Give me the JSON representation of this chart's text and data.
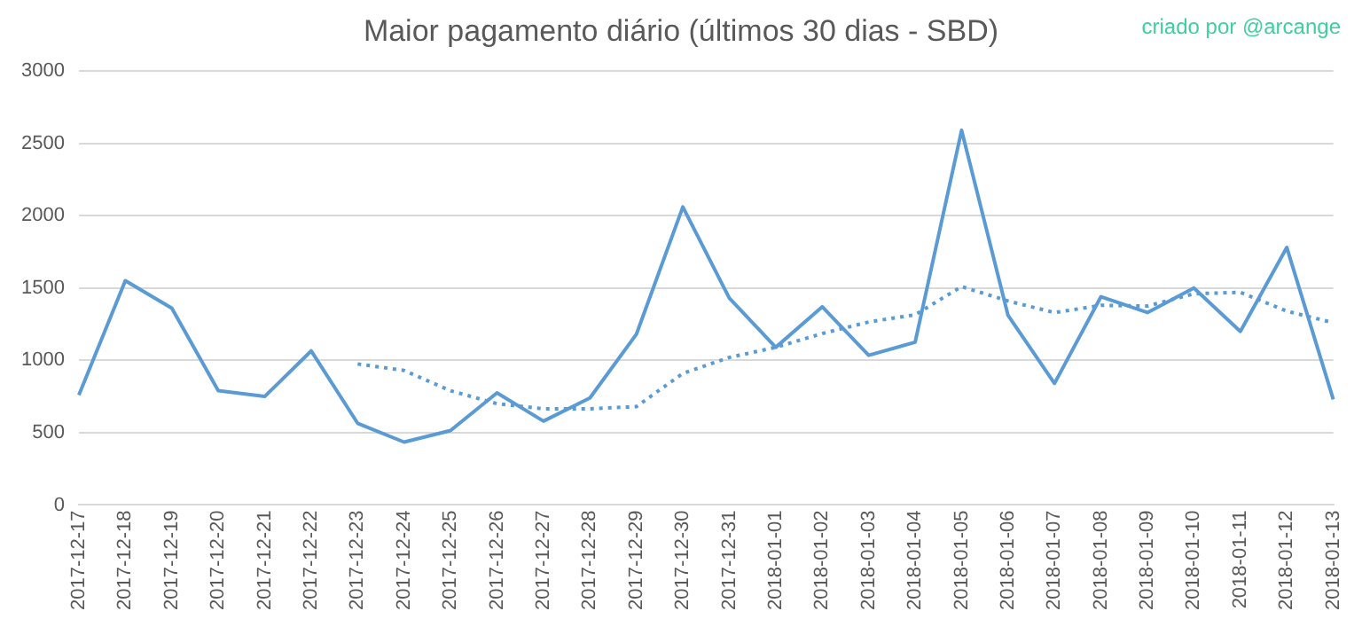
{
  "chart_data": {
    "type": "line",
    "title": "Maior pagamento diário (últimos 30 dias  - SBD)",
    "annotations": [
      "criado por @arcange"
    ],
    "categories": [
      "2017-12-17",
      "2017-12-18",
      "2017-12-19",
      "2017-12-20",
      "2017-12-21",
      "2017-12-22",
      "2017-12-23",
      "2017-12-24",
      "2017-12-25",
      "2017-12-26",
      "2017-12-27",
      "2017-12-28",
      "2017-12-29",
      "2017-12-30",
      "2017-12-31",
      "2018-01-01",
      "2018-01-02",
      "2018-01-03",
      "2018-01-04",
      "2018-01-05",
      "2018-01-06",
      "2018-01-07",
      "2018-01-08",
      "2018-01-09",
      "2018-01-10",
      "2018-01-11",
      "2018-01-12",
      "2018-01-13"
    ],
    "series": [
      {
        "color": "#5b9bd5",
        "line_style": "solid",
        "values": [
          760,
          1550,
          1360,
          790,
          750,
          1065,
          565,
          435,
          515,
          775,
          580,
          740,
          1180,
          2060,
          1430,
          1090,
          1370,
          1035,
          1125,
          2590,
          1310,
          840,
          1440,
          1330,
          1500,
          1200,
          1780,
          730
        ]
      },
      {
        "color": "#5b9bd5",
        "line_style": "dotted",
        "values": [
          null,
          null,
          null,
          null,
          null,
          null,
          975,
          930,
          790,
          700,
          665,
          665,
          680,
          910,
          1020,
          1090,
          1185,
          1265,
          1315,
          1510,
          1410,
          1330,
          1380,
          1375,
          1460,
          1470,
          1340,
          1260
        ]
      }
    ],
    "ylim": [
      0,
      3000
    ],
    "yticks": [
      0,
      500,
      1000,
      1500,
      2000,
      2500,
      3000
    ],
    "grid": "y",
    "legend": false,
    "marker": "none"
  }
}
